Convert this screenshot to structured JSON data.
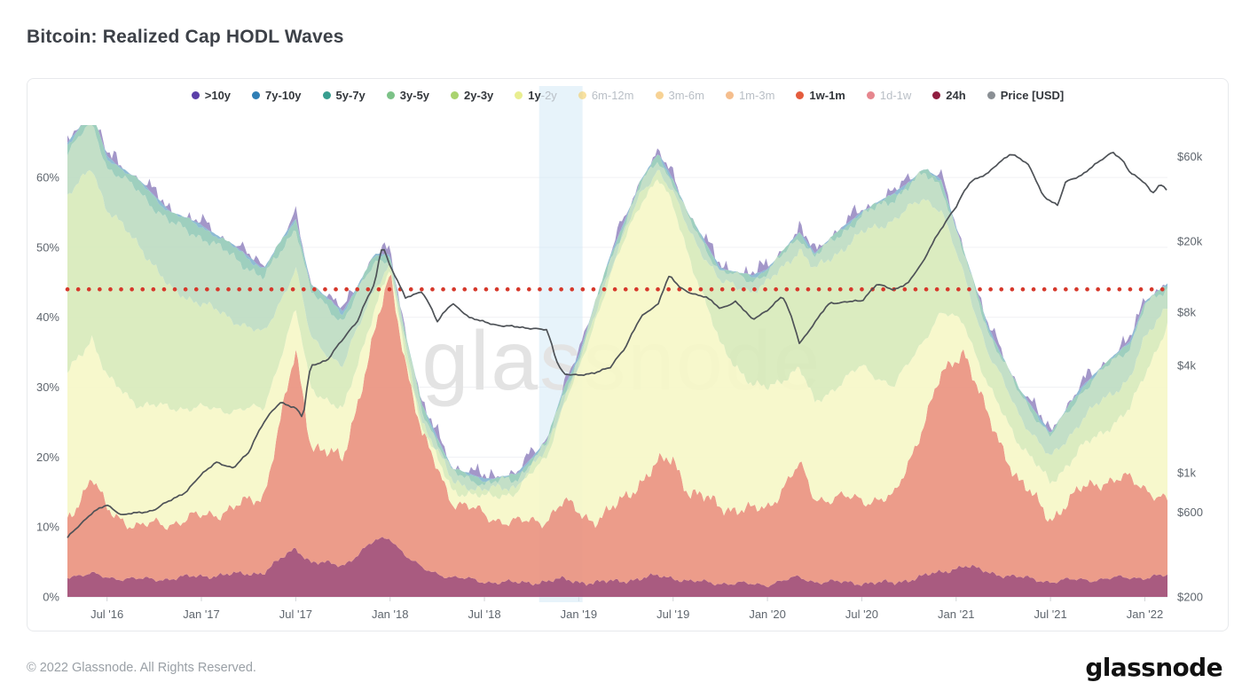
{
  "page": {
    "title": "Bitcoin: Realized Cap HODL Waves",
    "watermark": "glassnode",
    "footer_copyright": "© 2022 Glassnode. All Rights Reserved.",
    "footer_brand": "glassnode"
  },
  "legend": {
    "items": [
      {
        "name": ">10y",
        "color": "#5b3fa8",
        "muted": false
      },
      {
        "name": "7y-10y",
        "color": "#2f7eb5",
        "muted": false
      },
      {
        "name": "5y-7y",
        "color": "#389e8f",
        "muted": false
      },
      {
        "name": "3y-5y",
        "color": "#7cc287",
        "muted": false
      },
      {
        "name": "2y-3y",
        "color": "#a9d36e",
        "muted": false
      },
      {
        "name": "1y-2y",
        "color": "#e9ee90",
        "muted": false,
        "parts": [
          {
            "t": "1y",
            "muted": false
          },
          {
            "t": "-2y",
            "muted": true
          }
        ]
      },
      {
        "name": "6m-12m",
        "color": "#f3cd60",
        "muted": true
      },
      {
        "name": "3m-6m",
        "color": "#f2b44c",
        "muted": true
      },
      {
        "name": "1m-3m",
        "color": "#ef9241",
        "muted": true
      },
      {
        "name": "1w-1m",
        "color": "#e45c3d",
        "muted": false
      },
      {
        "name": "1d-1w",
        "color": "#d63543",
        "muted": true
      },
      {
        "name": "24h",
        "color": "#8f1d3f",
        "muted": false
      },
      {
        "name": "Price [USD]",
        "color": "#8a8f94",
        "muted": false
      }
    ]
  },
  "chart_data": {
    "type": "area",
    "title": "Bitcoin: Realized Cap HODL Waves",
    "stacking": "stacked-percent",
    "grid": "horizontal",
    "x_range_years": [
      2016.29,
      2022.12
    ],
    "x_ticks": [
      {
        "year": 2016.5,
        "label": "Jul '16"
      },
      {
        "year": 2017.0,
        "label": "Jan '17"
      },
      {
        "year": 2017.5,
        "label": "Jul '17"
      },
      {
        "year": 2018.0,
        "label": "Jan '18"
      },
      {
        "year": 2018.5,
        "label": "Jul '18"
      },
      {
        "year": 2019.0,
        "label": "Jan '19"
      },
      {
        "year": 2019.5,
        "label": "Jul '19"
      },
      {
        "year": 2020.0,
        "label": "Jan '20"
      },
      {
        "year": 2020.5,
        "label": "Jul '20"
      },
      {
        "year": 2021.0,
        "label": "Jan '21"
      },
      {
        "year": 2021.5,
        "label": "Jul '21"
      },
      {
        "year": 2022.0,
        "label": "Jan '22"
      }
    ],
    "y_left": {
      "min": 0,
      "max": 67.5,
      "ticks": [
        {
          "v": 0,
          "label": "0%"
        },
        {
          "v": 10,
          "label": "10%"
        },
        {
          "v": 20,
          "label": "20%"
        },
        {
          "v": 30,
          "label": "30%"
        },
        {
          "v": 40,
          "label": "40%"
        },
        {
          "v": 50,
          "label": "50%"
        },
        {
          "v": 60,
          "label": "60%"
        }
      ]
    },
    "y_right": {
      "scale": "log",
      "min": 200,
      "max": 90000,
      "ticks": [
        {
          "v": 200,
          "label": "$200"
        },
        {
          "v": 600,
          "label": "$600"
        },
        {
          "v": 1000,
          "label": "$1k"
        },
        {
          "v": 4000,
          "label": "$4k"
        },
        {
          "v": 8000,
          "label": "$8k"
        },
        {
          "v": 20000,
          "label": "$20k"
        },
        {
          "v": 60000,
          "label": "$60k"
        }
      ]
    },
    "threshold_line": {
      "value": 44,
      "color": "#d6392c",
      "style": "dotted"
    },
    "highlight_band": {
      "x_start_year": 2018.79,
      "x_end_year": 2019.02,
      "color": "#cfe7f6"
    },
    "disabled_series": [
      "6m-12m",
      "3m-6m",
      "1m-3m",
      "1d-1w"
    ],
    "x_years": [
      2016.29,
      2016.42,
      2016.5,
      2016.67,
      2016.83,
      2017.0,
      2017.17,
      2017.33,
      2017.5,
      2017.58,
      2017.75,
      2017.92,
      2018.0,
      2018.08,
      2018.17,
      2018.33,
      2018.5,
      2018.67,
      2018.83,
      2018.92,
      2019.0,
      2019.08,
      2019.17,
      2019.33,
      2019.42,
      2019.5,
      2019.58,
      2019.75,
      2019.92,
      2020.0,
      2020.17,
      2020.25,
      2020.5,
      2020.67,
      2020.83,
      2020.92,
      2021.04,
      2021.17,
      2021.33,
      2021.5,
      2021.67,
      2021.75,
      2021.92,
      2022.0,
      2022.12
    ],
    "series": [
      {
        "name": "24h",
        "fill": "#a24d75",
        "values": [
          3.0,
          3.2,
          2.8,
          2.5,
          2.6,
          3.0,
          3.2,
          3.5,
          7.0,
          5.0,
          4.5,
          8.0,
          8.5,
          6.0,
          4.0,
          2.8,
          2.2,
          2.0,
          2.2,
          2.5,
          2.2,
          2.0,
          2.2,
          2.6,
          3.0,
          2.8,
          2.2,
          2.0,
          1.8,
          1.8,
          2.8,
          2.2,
          2.0,
          2.0,
          3.0,
          3.5,
          4.5,
          3.5,
          2.8,
          2.2,
          2.5,
          2.5,
          2.8,
          2.8,
          3.0
        ]
      },
      {
        "name": "1w-1m",
        "fill": "#ea9480",
        "values": [
          8.0,
          14.0,
          9.5,
          7.5,
          8.0,
          8.5,
          9.5,
          11.0,
          28.0,
          17.0,
          15.0,
          30.0,
          37.5,
          28.0,
          19.0,
          11.0,
          9.5,
          8.5,
          9.0,
          11.0,
          10.0,
          9.0,
          10.0,
          14.0,
          16.0,
          17.0,
          13.0,
          11.0,
          10.5,
          11.0,
          16.0,
          12.0,
          12.0,
          12.0,
          22.0,
          28.0,
          31.0,
          22.0,
          14.0,
          9.0,
          13.0,
          14.0,
          14.0,
          13.0,
          10.5
        ]
      },
      {
        "name": "1y-2y",
        "fill": "#f6f7c8",
        "values": [
          21.0,
          20.0,
          19.0,
          17.5,
          16.5,
          15.5,
          14.0,
          12.5,
          6.0,
          8.0,
          7.0,
          3.5,
          0.7,
          0.8,
          1.0,
          1.5,
          2.5,
          4.5,
          9.0,
          14.0,
          20.0,
          28.0,
          34.0,
          40.0,
          41.0,
          36.0,
          34.0,
          23.0,
          18.0,
          17.0,
          14.0,
          13.5,
          19.0,
          16.0,
          12.0,
          9.0,
          4.0,
          4.5,
          5.5,
          5.0,
          6.0,
          6.5,
          10.0,
          16.0,
          25.5
        ]
      },
      {
        "name": "2y-3y",
        "fill": "#d8eabb",
        "values": [
          25.0,
          24.5,
          24.0,
          23.0,
          17.0,
          15.0,
          13.0,
          10.5,
          6.0,
          7.0,
          6.5,
          3.0,
          0.7,
          1.0,
          1.2,
          1.2,
          1.0,
          0.9,
          0.8,
          0.8,
          0.8,
          0.9,
          1.0,
          1.1,
          1.3,
          1.8,
          3.5,
          9.0,
          13.5,
          15.0,
          17.0,
          19.0,
          19.0,
          24.0,
          20.0,
          15.0,
          6.5,
          5.0,
          4.0,
          3.5,
          4.0,
          4.5,
          4.5,
          5.0,
          3.0
        ]
      },
      {
        "name": "3y-5y",
        "fill": "#bedcc2",
        "values": [
          6.5,
          6.3,
          6.2,
          7.5,
          9.5,
          9.5,
          9.0,
          8.0,
          6.0,
          6.5,
          6.5,
          3.5,
          1.1,
          1.5,
          1.5,
          1.2,
          1.0,
          0.9,
          0.8,
          0.9,
          1.0,
          1.1,
          1.2,
          1.3,
          1.4,
          1.5,
          1.5,
          1.5,
          1.5,
          1.6,
          1.8,
          2.0,
          2.5,
          3.0,
          3.5,
          3.5,
          3.0,
          3.0,
          3.0,
          3.2,
          4.0,
          4.2,
          4.5,
          4.8,
          2.0
        ]
      },
      {
        "name": "5y-7y",
        "fill": "#96cbb8",
        "values": [
          1.3,
          1.3,
          1.3,
          1.4,
          1.5,
          1.5,
          1.4,
          1.3,
          1.0,
          1.1,
          1.1,
          0.8,
          0.3,
          0.4,
          0.5,
          0.5,
          0.5,
          0.5,
          0.4,
          0.4,
          0.4,
          0.4,
          0.4,
          0.5,
          0.5,
          0.5,
          0.5,
          0.4,
          0.4,
          0.4,
          0.4,
          0.4,
          0.5,
          0.5,
          0.5,
          0.5,
          0.4,
          0.4,
          0.4,
          0.4,
          0.5,
          0.5,
          0.5,
          0.5,
          0.5
        ]
      },
      {
        "name": "7y-10y",
        "fill": "#86b6d0",
        "values": [
          0.2,
          0.2,
          0.2,
          0.2,
          0.2,
          0.2,
          0.2,
          0.2,
          0.2,
          0.2,
          0.2,
          0.2,
          0.2,
          0.2,
          0.2,
          0.2,
          0.2,
          0.2,
          0.2,
          0.2,
          0.2,
          0.2,
          0.2,
          0.2,
          0.2,
          0.2,
          0.2,
          0.2,
          0.2,
          0.2,
          0.2,
          0.2,
          0.2,
          0.2,
          0.2,
          0.2,
          0.2,
          0.2,
          0.2,
          0.2,
          0.2,
          0.2,
          0.2,
          0.2,
          0.2
        ]
      },
      {
        "name": ">10y",
        "fill": "#9b8ec4",
        "values": [
          0.05,
          0.05,
          0.05,
          0.05,
          0.05,
          0.05,
          0.05,
          0.05,
          0.05,
          0.05,
          0.05,
          0.05,
          0.05,
          0.05,
          0.05,
          0.05,
          0.05,
          0.05,
          0.05,
          0.05,
          0.05,
          0.05,
          0.05,
          0.05,
          0.05,
          0.05,
          0.05,
          0.05,
          0.05,
          0.05,
          0.05,
          0.05,
          0.05,
          0.05,
          0.05,
          0.05,
          0.05,
          0.05,
          0.05,
          0.05,
          0.05,
          0.05,
          0.05,
          0.05,
          0.05
        ]
      }
    ],
    "price": {
      "name": "Price [USD]",
      "color": "#4e5257",
      "x_years": [
        2016.29,
        2016.42,
        2016.5,
        2016.58,
        2016.75,
        2016.92,
        2017.0,
        2017.08,
        2017.17,
        2017.25,
        2017.33,
        2017.42,
        2017.5,
        2017.54,
        2017.58,
        2017.67,
        2017.75,
        2017.83,
        2017.92,
        2017.96,
        2018.0,
        2018.08,
        2018.17,
        2018.25,
        2018.33,
        2018.42,
        2018.58,
        2018.75,
        2018.83,
        2018.88,
        2018.92,
        2019.0,
        2019.08,
        2019.17,
        2019.25,
        2019.33,
        2019.42,
        2019.48,
        2019.54,
        2019.58,
        2019.67,
        2019.75,
        2019.83,
        2019.92,
        2020.0,
        2020.08,
        2020.17,
        2020.25,
        2020.33,
        2020.5,
        2020.58,
        2020.67,
        2020.75,
        2020.83,
        2020.92,
        2021.0,
        2021.08,
        2021.17,
        2021.25,
        2021.29,
        2021.38,
        2021.46,
        2021.54,
        2021.58,
        2021.67,
        2021.75,
        2021.83,
        2021.88,
        2021.92,
        2022.0,
        2022.04,
        2022.08,
        2022.12
      ],
      "values_usd": [
        430,
        590,
        660,
        575,
        615,
        780,
        970,
        1150,
        1050,
        1300,
        1900,
        2500,
        2300,
        2000,
        4000,
        4300,
        5600,
        7200,
        11500,
        19000,
        14500,
        9500,
        10500,
        7000,
        9000,
        7400,
        6700,
        6500,
        6300,
        4300,
        3600,
        3500,
        3650,
        3900,
        5100,
        7500,
        8800,
        12900,
        10800,
        10300,
        9800,
        8300,
        9200,
        7200,
        8200,
        9800,
        5300,
        6900,
        9000,
        9200,
        11500,
        10600,
        11800,
        15500,
        23500,
        31000,
        44000,
        48000,
        58000,
        62500,
        54000,
        36000,
        31500,
        43000,
        47500,
        55000,
        64000,
        57000,
        48500,
        43000,
        37000,
        41500,
        38500
      ]
    }
  }
}
